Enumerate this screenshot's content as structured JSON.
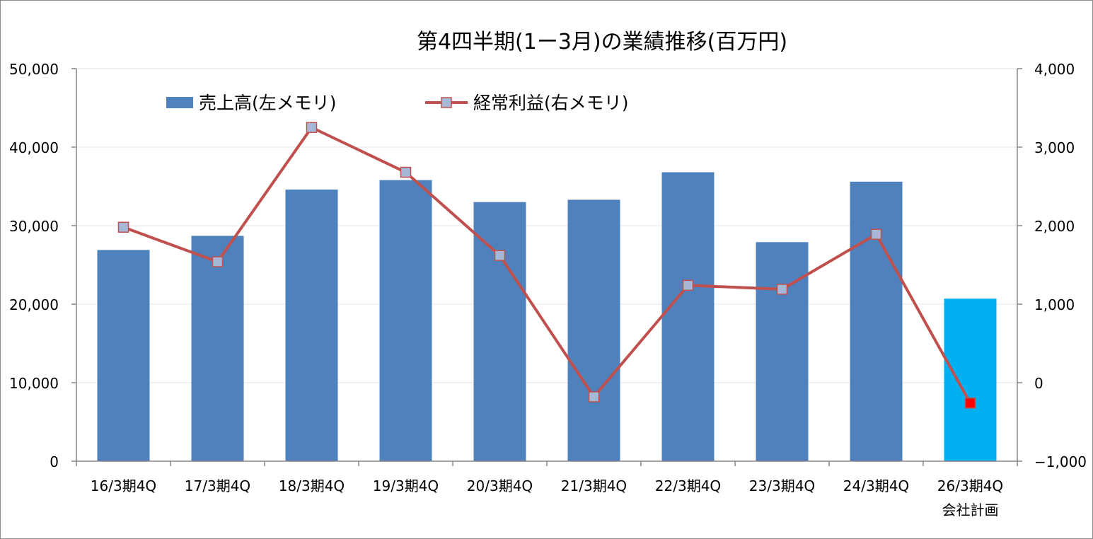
{
  "chart_data": {
    "type": "bar",
    "title": "第4四半期(1ー3月)の業績推移(百万円)",
    "categories": [
      "16/3期4Q",
      "17/3期4Q",
      "18/3期4Q",
      "19/3期4Q",
      "20/3期4Q",
      "21/3期4Q",
      "22/3期4Q",
      "23/3期4Q",
      "24/3期4Q",
      "26/3期4Q"
    ],
    "category_sublabels": [
      "",
      "",
      "",
      "",
      "",
      "",
      "",
      "",
      "",
      "会社計画"
    ],
    "series": [
      {
        "name": "売上高(左メモリ)",
        "type": "bar",
        "axis": "left",
        "color": "#4f81bd",
        "highlight_color": "#00b0f0",
        "highlight_index": 9,
        "values": [
          26900,
          28700,
          34600,
          35800,
          33000,
          33300,
          36800,
          27900,
          35600,
          20700
        ]
      },
      {
        "name": "経常利益(右メモリ)",
        "type": "line",
        "axis": "right",
        "color": "#c0504d",
        "marker_color": "#a5b8d7",
        "highlight_marker_color": "#ff0000",
        "highlight_index": 9,
        "values": [
          1980,
          1540,
          3250,
          2680,
          1620,
          -180,
          1240,
          1190,
          1890,
          -260
        ]
      }
    ],
    "y_left": {
      "ylim": [
        0,
        50000
      ],
      "ticks": [
        0,
        10000,
        20000,
        30000,
        40000,
        50000
      ],
      "tick_labels": [
        "0",
        "10,000",
        "20,000",
        "30,000",
        "40,000",
        "50,000"
      ]
    },
    "y_right": {
      "ylim": [
        -1000,
        4000
      ],
      "ticks": [
        -1000,
        0,
        1000,
        2000,
        3000,
        4000
      ],
      "tick_labels": [
        "−1,000",
        "0",
        "1,000",
        "2,000",
        "3,000",
        "4,000"
      ],
      "negative_color": "#ff0000"
    },
    "grid": true,
    "legend": "top-left"
  }
}
